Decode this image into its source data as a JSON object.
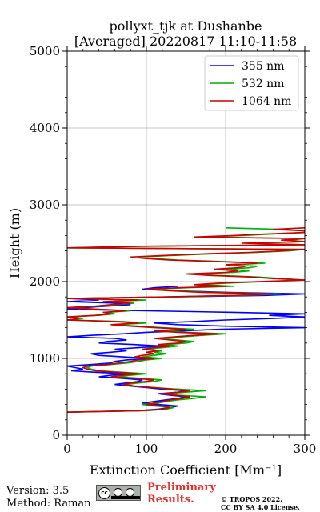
{
  "chart_data": {
    "type": "line",
    "title": "pollyxt_tjk at Dushanbe",
    "subtitle": "[Averaged] 20220817 11:10-11:58",
    "xlabel": "Extinction Coefficient [Mm⁻¹]",
    "ylabel": "Height (m)",
    "xlim": [
      0,
      300
    ],
    "ylim": [
      0,
      5000
    ],
    "xticks": [
      0,
      100,
      200,
      300
    ],
    "yticks": [
      0,
      1000,
      2000,
      3000,
      4000,
      5000
    ],
    "grid": true,
    "legend_position": "top-right",
    "series": [
      {
        "name": "355 nm",
        "color": "#0000ff",
        "points": [
          [
            0,
            300
          ],
          [
            90,
            320
          ],
          [
            115,
            340
          ],
          [
            130,
            360
          ],
          [
            140,
            380
          ],
          [
            115,
            400
          ],
          [
            95,
            420
          ],
          [
            110,
            440
          ],
          [
            125,
            460
          ],
          [
            140,
            480
          ],
          [
            150,
            500
          ],
          [
            130,
            520
          ],
          [
            115,
            540
          ],
          [
            140,
            560
          ],
          [
            150,
            580
          ],
          [
            120,
            600
          ],
          [
            100,
            620
          ],
          [
            80,
            640
          ],
          [
            60,
            660
          ],
          [
            75,
            680
          ],
          [
            90,
            700
          ],
          [
            95,
            720
          ],
          [
            70,
            740
          ],
          [
            40,
            760
          ],
          [
            55,
            780
          ],
          [
            80,
            800
          ],
          [
            35,
            820
          ],
          [
            5,
            840
          ],
          [
            20,
            860
          ],
          [
            10,
            880
          ],
          [
            0,
            900
          ],
          [
            30,
            920
          ],
          [
            55,
            940
          ],
          [
            60,
            960
          ],
          [
            75,
            980
          ],
          [
            105,
            1000
          ],
          [
            70,
            1020
          ],
          [
            40,
            1040
          ],
          [
            30,
            1060
          ],
          [
            55,
            1080
          ],
          [
            75,
            1100
          ],
          [
            60,
            1120
          ],
          [
            90,
            1140
          ],
          [
            120,
            1160
          ],
          [
            85,
            1180
          ],
          [
            40,
            1200
          ],
          [
            50,
            1220
          ],
          [
            75,
            1240
          ],
          [
            60,
            1260
          ],
          [
            0,
            1280
          ],
          [
            30,
            1300
          ],
          [
            70,
            1320
          ],
          [
            100,
            1340
          ],
          [
            150,
            1360
          ],
          [
            195,
            1380
          ],
          [
            300,
            1400
          ],
          [
            200,
            1420
          ],
          [
            140,
            1440
          ],
          [
            110,
            1460
          ],
          [
            160,
            1480
          ],
          [
            200,
            1500
          ],
          [
            260,
            1520
          ],
          [
            300,
            1540
          ],
          [
            255,
            1560
          ],
          [
            300,
            1580
          ],
          [
            210,
            1600
          ],
          [
            100,
            1620
          ],
          [
            0,
            1640
          ],
          [
            20,
            1660
          ],
          [
            50,
            1680
          ],
          [
            80,
            1700
          ],
          [
            60,
            1720
          ],
          [
            0,
            1740
          ],
          [
            40,
            1760
          ],
          [
            0,
            1780
          ],
          [
            130,
            1800
          ],
          [
            250,
            1820
          ],
          [
            300,
            1840
          ],
          [
            200,
            1860
          ],
          [
            140,
            1880
          ],
          [
            95,
            1900
          ],
          [
            110,
            1920
          ],
          [
            140,
            1940
          ]
        ]
      },
      {
        "name": "532 nm",
        "color": "#00b000",
        "points": [
          [
            0,
            300
          ],
          [
            100,
            320
          ],
          [
            125,
            340
          ],
          [
            135,
            360
          ],
          [
            110,
            380
          ],
          [
            95,
            400
          ],
          [
            115,
            420
          ],
          [
            125,
            440
          ],
          [
            140,
            460
          ],
          [
            160,
            480
          ],
          [
            175,
            500
          ],
          [
            140,
            520
          ],
          [
            125,
            540
          ],
          [
            150,
            560
          ],
          [
            175,
            580
          ],
          [
            140,
            600
          ],
          [
            110,
            620
          ],
          [
            85,
            640
          ],
          [
            75,
            660
          ],
          [
            90,
            680
          ],
          [
            110,
            700
          ],
          [
            120,
            720
          ],
          [
            95,
            740
          ],
          [
            65,
            760
          ],
          [
            80,
            780
          ],
          [
            100,
            800
          ],
          [
            70,
            820
          ],
          [
            40,
            840
          ],
          [
            30,
            860
          ],
          [
            25,
            880
          ],
          [
            30,
            900
          ],
          [
            55,
            920
          ],
          [
            75,
            940
          ],
          [
            90,
            960
          ],
          [
            100,
            980
          ],
          [
            120,
            1000
          ],
          [
            95,
            1020
          ],
          [
            110,
            1040
          ],
          [
            125,
            1060
          ],
          [
            110,
            1080
          ],
          [
            120,
            1100
          ],
          [
            100,
            1120
          ],
          [
            120,
            1140
          ],
          [
            140,
            1160
          ],
          [
            125,
            1180
          ],
          [
            150,
            1200
          ],
          [
            160,
            1220
          ],
          [
            140,
            1240
          ],
          [
            120,
            1260
          ],
          [
            145,
            1280
          ],
          [
            170,
            1300
          ],
          [
            200,
            1320
          ],
          [
            150,
            1340
          ],
          [
            120,
            1360
          ],
          [
            160,
            1380
          ],
          [
            120,
            1400
          ],
          [
            90,
            1420
          ],
          [
            60,
            1440
          ],
          [
            100,
            1460
          ],
          [
            70,
            1480
          ],
          [
            0,
            1500
          ],
          [
            20,
            1520
          ],
          [
            0,
            1540
          ],
          [
            40,
            1560
          ],
          [
            60,
            1580
          ],
          [
            50,
            1600
          ],
          [
            80,
            1620
          ],
          [
            0,
            1660
          ],
          [
            40,
            1680
          ],
          [
            60,
            1700
          ],
          [
            85,
            1720
          ],
          [
            50,
            1740
          ],
          [
            100,
            1760
          ],
          [
            0,
            1780
          ],
          [
            130,
            1800
          ],
          [
            220,
            1820
          ],
          [
            270,
            1840
          ],
          [
            180,
            1860
          ],
          [
            140,
            1880
          ],
          [
            110,
            1900
          ],
          [
            150,
            1920
          ],
          [
            210,
            1940
          ],
          [
            170,
            1960
          ],
          [
            200,
            1980
          ],
          [
            250,
            2000
          ],
          [
            300,
            2020
          ],
          [
            270,
            2040
          ],
          [
            240,
            2060
          ],
          [
            190,
            2080
          ],
          [
            160,
            2100
          ],
          [
            210,
            2120
          ],
          [
            230,
            2140
          ],
          [
            200,
            2160
          ],
          [
            230,
            2180
          ],
          [
            240,
            2200
          ],
          [
            210,
            2220
          ],
          [
            250,
            2240
          ],
          [
            200,
            2260
          ],
          [
            140,
            2280
          ],
          [
            110,
            2300
          ],
          [
            90,
            2320
          ],
          [
            130,
            2340
          ],
          [
            180,
            2360
          ],
          [
            240,
            2380
          ],
          [
            280,
            2400
          ],
          [
            300,
            2420
          ],
          [
            0,
            2440
          ],
          [
            100,
            2460
          ],
          [
            300,
            2480
          ],
          [
            230,
            2500
          ],
          [
            300,
            2520
          ],
          [
            280,
            2540
          ],
          [
            300,
            2560
          ],
          [
            170,
            2580
          ],
          [
            220,
            2600
          ],
          [
            260,
            2620
          ],
          [
            300,
            2640
          ],
          [
            300,
            2660
          ],
          [
            270,
            2680
          ],
          [
            200,
            2700
          ]
        ]
      },
      {
        "name": "1064 nm",
        "color": "#cc0000",
        "points": [
          [
            0,
            300
          ],
          [
            95,
            320
          ],
          [
            120,
            340
          ],
          [
            130,
            360
          ],
          [
            120,
            380
          ],
          [
            100,
            400
          ],
          [
            110,
            420
          ],
          [
            120,
            440
          ],
          [
            130,
            460
          ],
          [
            145,
            480
          ],
          [
            155,
            500
          ],
          [
            135,
            520
          ],
          [
            120,
            540
          ],
          [
            140,
            560
          ],
          [
            155,
            580
          ],
          [
            130,
            600
          ],
          [
            110,
            620
          ],
          [
            85,
            640
          ],
          [
            70,
            660
          ],
          [
            80,
            680
          ],
          [
            100,
            700
          ],
          [
            110,
            720
          ],
          [
            85,
            740
          ],
          [
            55,
            760
          ],
          [
            70,
            780
          ],
          [
            90,
            800
          ],
          [
            60,
            820
          ],
          [
            35,
            840
          ],
          [
            25,
            860
          ],
          [
            20,
            880
          ],
          [
            25,
            900
          ],
          [
            50,
            920
          ],
          [
            65,
            940
          ],
          [
            80,
            960
          ],
          [
            90,
            980
          ],
          [
            110,
            1000
          ],
          [
            85,
            1020
          ],
          [
            95,
            1040
          ],
          [
            110,
            1060
          ],
          [
            100,
            1080
          ],
          [
            115,
            1100
          ],
          [
            95,
            1120
          ],
          [
            110,
            1140
          ],
          [
            130,
            1160
          ],
          [
            115,
            1180
          ],
          [
            140,
            1200
          ],
          [
            150,
            1220
          ],
          [
            130,
            1240
          ],
          [
            110,
            1260
          ],
          [
            135,
            1280
          ],
          [
            160,
            1300
          ],
          [
            190,
            1320
          ],
          [
            140,
            1340
          ],
          [
            110,
            1360
          ],
          [
            150,
            1380
          ],
          [
            110,
            1400
          ],
          [
            80,
            1420
          ],
          [
            55,
            1440
          ],
          [
            90,
            1460
          ],
          [
            60,
            1480
          ],
          [
            0,
            1500
          ],
          [
            15,
            1520
          ],
          [
            0,
            1540
          ],
          [
            35,
            1560
          ],
          [
            55,
            1580
          ],
          [
            45,
            1600
          ],
          [
            75,
            1620
          ],
          [
            0,
            1660
          ],
          [
            35,
            1680
          ],
          [
            55,
            1700
          ],
          [
            80,
            1720
          ],
          [
            45,
            1740
          ],
          [
            90,
            1760
          ],
          [
            0,
            1780
          ],
          [
            120,
            1800
          ],
          [
            210,
            1820
          ],
          [
            260,
            1840
          ],
          [
            170,
            1860
          ],
          [
            130,
            1880
          ],
          [
            100,
            1900
          ],
          [
            140,
            1920
          ],
          [
            200,
            1940
          ],
          [
            160,
            1960
          ],
          [
            190,
            1980
          ],
          [
            240,
            2000
          ],
          [
            300,
            2020
          ],
          [
            260,
            2040
          ],
          [
            230,
            2060
          ],
          [
            180,
            2080
          ],
          [
            150,
            2100
          ],
          [
            200,
            2120
          ],
          [
            215,
            2140
          ],
          [
            185,
            2160
          ],
          [
            215,
            2180
          ],
          [
            225,
            2200
          ],
          [
            200,
            2220
          ],
          [
            240,
            2240
          ],
          [
            190,
            2260
          ],
          [
            130,
            2280
          ],
          [
            100,
            2300
          ],
          [
            80,
            2320
          ],
          [
            120,
            2340
          ],
          [
            170,
            2360
          ],
          [
            230,
            2380
          ],
          [
            270,
            2400
          ],
          [
            300,
            2420
          ],
          [
            0,
            2440
          ],
          [
            90,
            2460
          ],
          [
            300,
            2480
          ],
          [
            220,
            2500
          ],
          [
            300,
            2520
          ],
          [
            270,
            2540
          ],
          [
            300,
            2560
          ],
          [
            160,
            2580
          ],
          [
            210,
            2600
          ],
          [
            250,
            2620
          ],
          [
            300,
            2640
          ],
          [
            300,
            2660
          ],
          [
            260,
            2680
          ],
          [
            300,
            2700
          ]
        ]
      }
    ]
  },
  "footer": {
    "version": "Version: 3.5",
    "method": "Method: Raman",
    "prelim_line1": "Preliminary",
    "prelim_line2": "Results.",
    "copyright_line1": "© TROPOS 2022.",
    "copyright_line2": "CC BY SA 4.0 License.",
    "license_badge_text": "cc"
  }
}
